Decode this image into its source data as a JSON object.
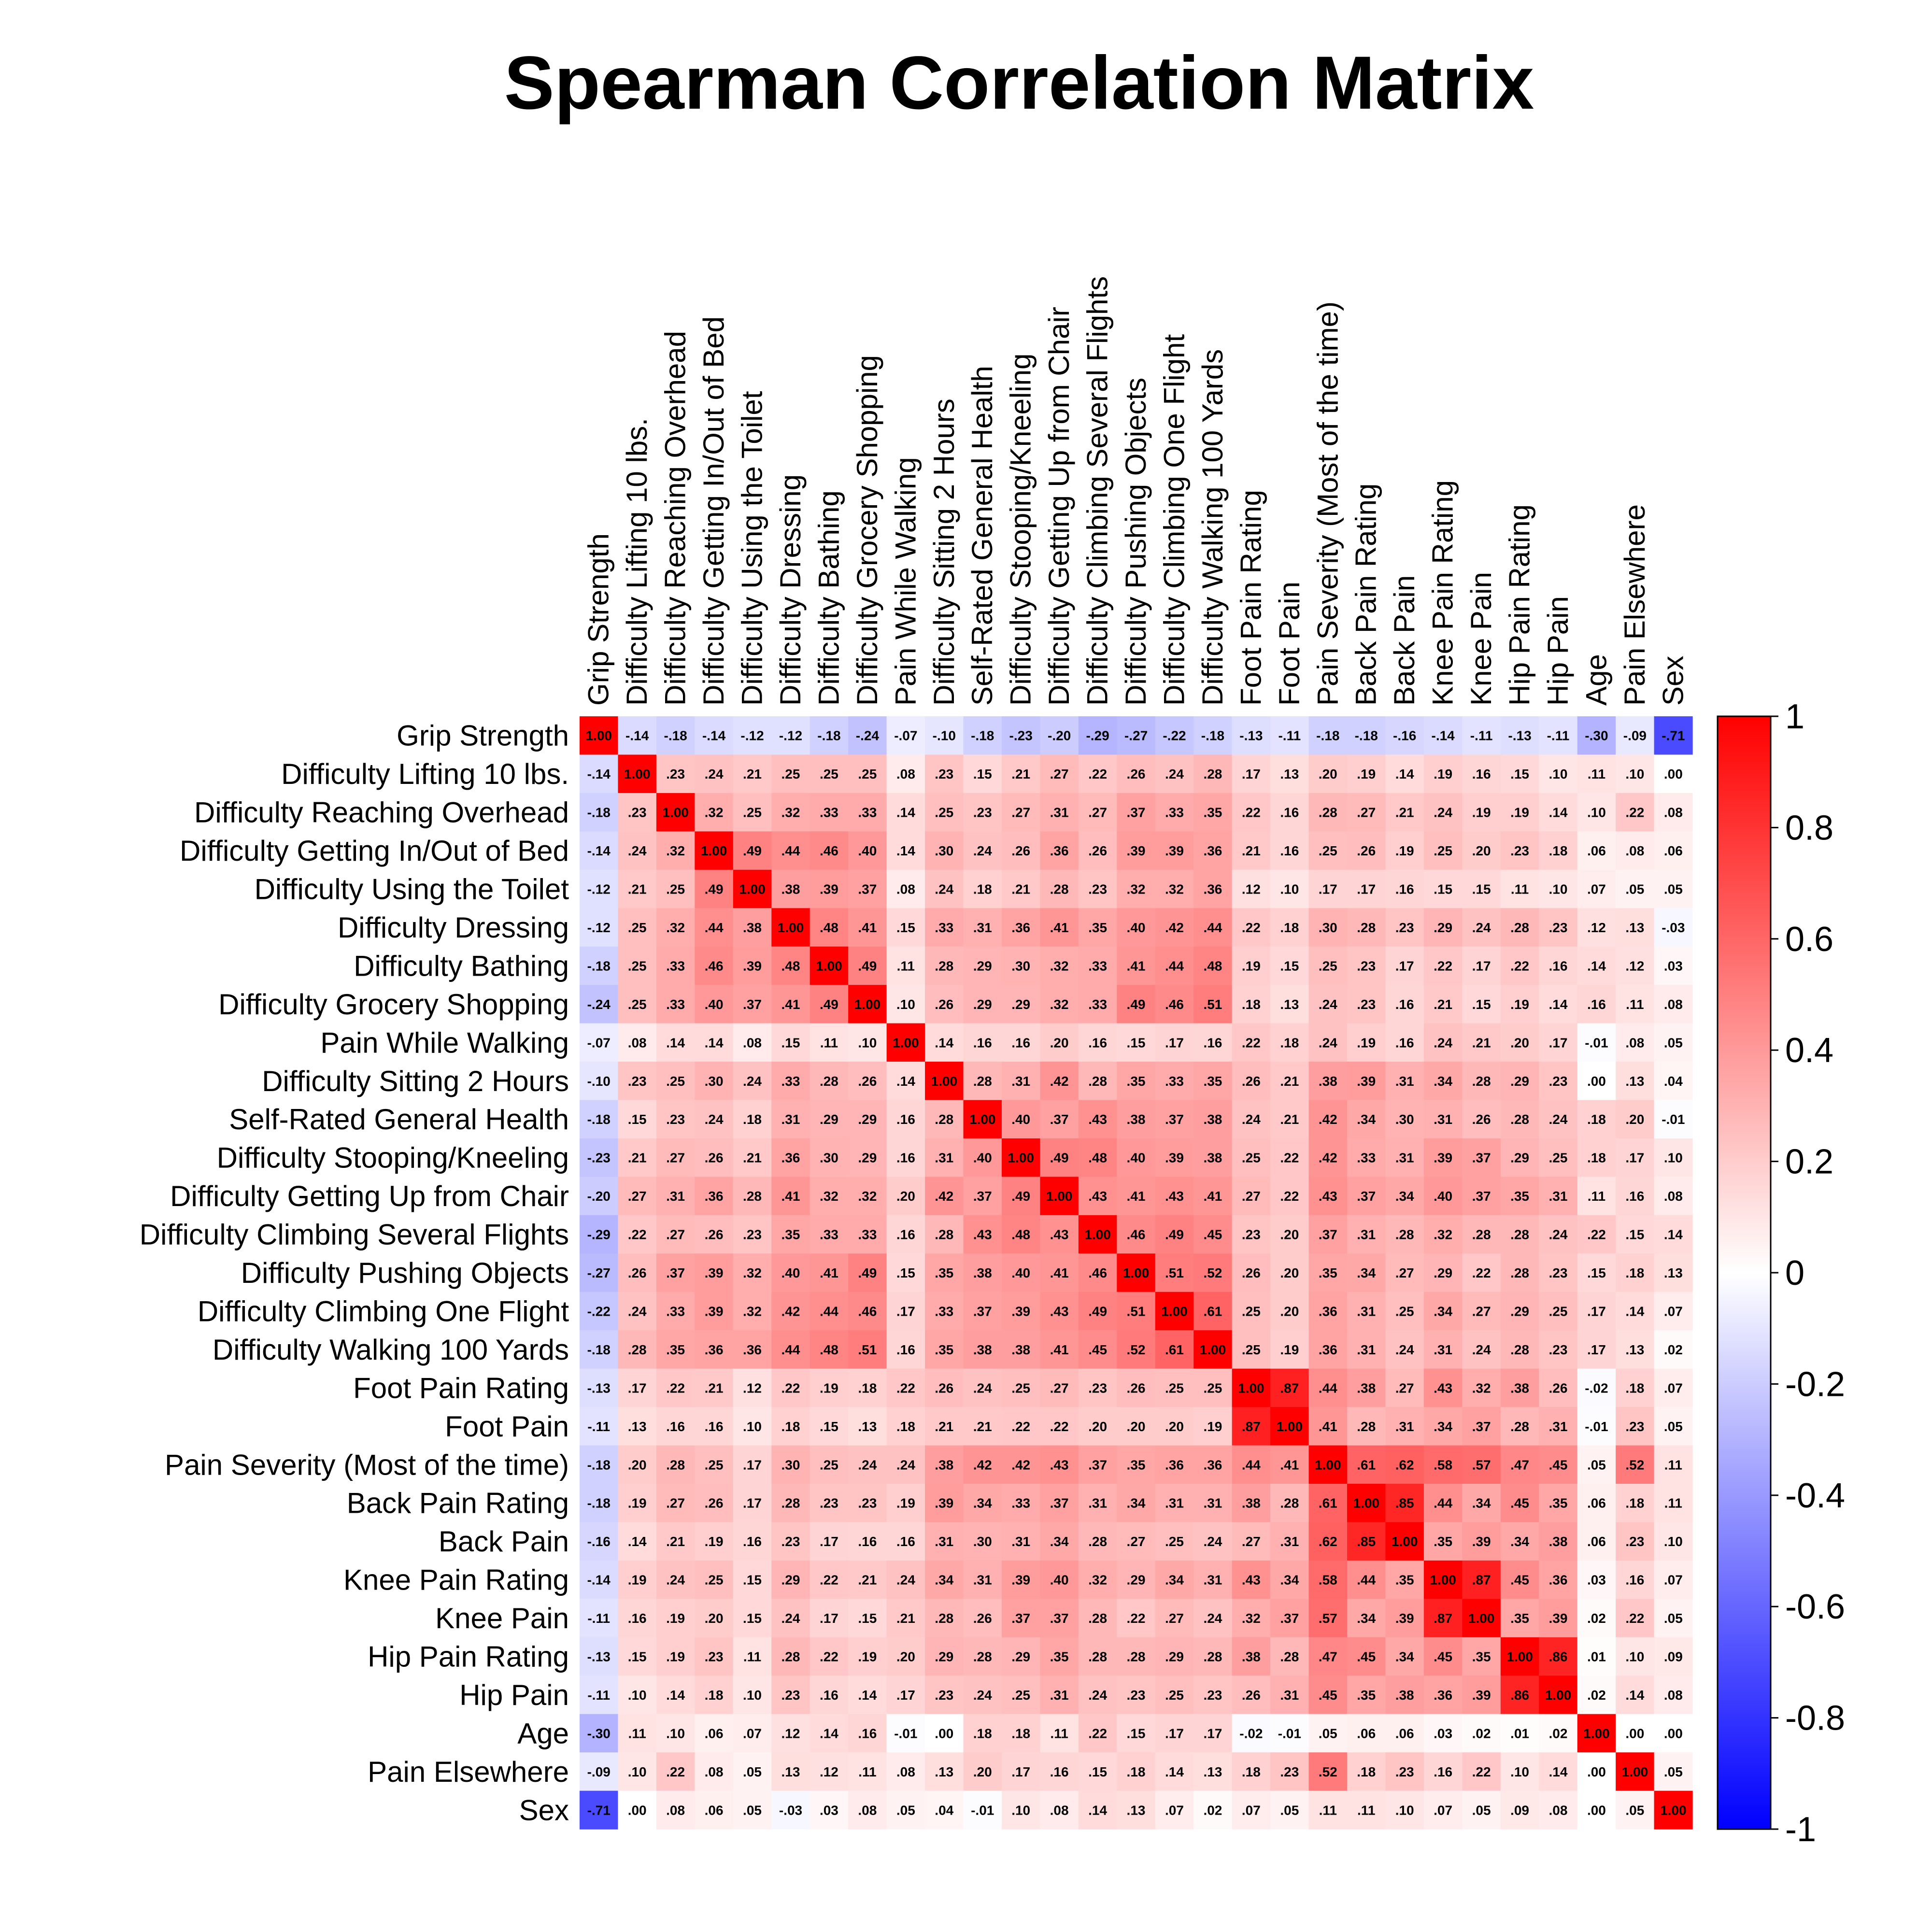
{
  "chart_data": {
    "type": "heatmap",
    "title": "Spearman Correlation Matrix",
    "variables": [
      "Grip Strength",
      "Difficulty Lifting 10 lbs.",
      "Difficulty Reaching Overhead",
      "Difficulty Getting In/Out of Bed",
      "Difficulty Using the Toilet",
      "Difficulty Dressing",
      "Difficulty Bathing",
      "Difficulty Grocery Shopping",
      "Pain While Walking",
      "Difficulty Sitting 2 Hours",
      "Self-Rated General Health",
      "Difficulty Stooping/Kneeling",
      "Difficulty Getting Up from Chair",
      "Difficulty Climbing Several Flights",
      "Difficulty Pushing Objects",
      "Difficulty Climbing One Flight",
      "Difficulty Walking 100 Yards",
      "Foot Pain Rating",
      "Foot Pain",
      "Pain Severity (Most of the time)",
      "Back Pain Rating",
      "Back Pain",
      "Knee Pain Rating",
      "Knee Pain",
      "Hip Pain Rating",
      "Hip Pain",
      "Age",
      "Pain Elsewhere",
      "Sex"
    ],
    "matrix": [
      [
        1.0,
        -0.14,
        -0.18,
        -0.14,
        -0.12,
        -0.12,
        -0.18,
        -0.24,
        -0.07,
        -0.1,
        -0.18,
        -0.23,
        -0.2,
        -0.29,
        -0.27,
        -0.22,
        -0.18,
        -0.13,
        -0.11,
        -0.18,
        -0.18,
        -0.16,
        -0.14,
        -0.11,
        -0.13,
        -0.11,
        -0.3,
        -0.09,
        -0.71
      ],
      [
        -0.14,
        1.0,
        0.23,
        0.24,
        0.21,
        0.25,
        0.25,
        0.25,
        0.08,
        0.23,
        0.15,
        0.21,
        0.27,
        0.22,
        0.26,
        0.24,
        0.28,
        0.17,
        0.13,
        0.2,
        0.19,
        0.14,
        0.19,
        0.16,
        0.15,
        0.1,
        0.11,
        0.1,
        0.0
      ],
      [
        -0.18,
        0.23,
        1.0,
        0.32,
        0.25,
        0.32,
        0.33,
        0.33,
        0.14,
        0.25,
        0.23,
        0.27,
        0.31,
        0.27,
        0.37,
        0.33,
        0.35,
        0.22,
        0.16,
        0.28,
        0.27,
        0.21,
        0.24,
        0.19,
        0.19,
        0.14,
        0.1,
        0.22,
        0.08
      ],
      [
        -0.14,
        0.24,
        0.32,
        1.0,
        0.49,
        0.44,
        0.46,
        0.4,
        0.14,
        0.3,
        0.24,
        0.26,
        0.36,
        0.26,
        0.39,
        0.39,
        0.36,
        0.21,
        0.16,
        0.25,
        0.26,
        0.19,
        0.25,
        0.2,
        0.23,
        0.18,
        0.06,
        0.08,
        0.06
      ],
      [
        -0.12,
        0.21,
        0.25,
        0.49,
        1.0,
        0.38,
        0.39,
        0.37,
        0.08,
        0.24,
        0.18,
        0.21,
        0.28,
        0.23,
        0.32,
        0.32,
        0.36,
        0.12,
        0.1,
        0.17,
        0.17,
        0.16,
        0.15,
        0.15,
        0.11,
        0.1,
        0.07,
        0.05,
        0.05
      ],
      [
        -0.12,
        0.25,
        0.32,
        0.44,
        0.38,
        1.0,
        0.48,
        0.41,
        0.15,
        0.33,
        0.31,
        0.36,
        0.41,
        0.35,
        0.4,
        0.42,
        0.44,
        0.22,
        0.18,
        0.3,
        0.28,
        0.23,
        0.29,
        0.24,
        0.28,
        0.23,
        0.12,
        0.13,
        -0.03
      ],
      [
        -0.18,
        0.25,
        0.33,
        0.46,
        0.39,
        0.48,
        1.0,
        0.49,
        0.11,
        0.28,
        0.29,
        0.3,
        0.32,
        0.33,
        0.41,
        0.44,
        0.48,
        0.19,
        0.15,
        0.25,
        0.23,
        0.17,
        0.22,
        0.17,
        0.22,
        0.16,
        0.14,
        0.12,
        0.03
      ],
      [
        -0.24,
        0.25,
        0.33,
        0.4,
        0.37,
        0.41,
        0.49,
        1.0,
        0.1,
        0.26,
        0.29,
        0.29,
        0.32,
        0.33,
        0.49,
        0.46,
        0.51,
        0.18,
        0.13,
        0.24,
        0.23,
        0.16,
        0.21,
        0.15,
        0.19,
        0.14,
        0.16,
        0.11,
        0.08
      ],
      [
        -0.07,
        0.08,
        0.14,
        0.14,
        0.08,
        0.15,
        0.11,
        0.1,
        1.0,
        0.14,
        0.16,
        0.16,
        0.2,
        0.16,
        0.15,
        0.17,
        0.16,
        0.22,
        0.18,
        0.24,
        0.19,
        0.16,
        0.24,
        0.21,
        0.2,
        0.17,
        -0.01,
        0.08,
        0.05
      ],
      [
        -0.1,
        0.23,
        0.25,
        0.3,
        0.24,
        0.33,
        0.28,
        0.26,
        0.14,
        1.0,
        0.28,
        0.31,
        0.42,
        0.28,
        0.35,
        0.33,
        0.35,
        0.26,
        0.21,
        0.38,
        0.39,
        0.31,
        0.34,
        0.28,
        0.29,
        0.23,
        0.0,
        0.13,
        0.04
      ],
      [
        -0.18,
        0.15,
        0.23,
        0.24,
        0.18,
        0.31,
        0.29,
        0.29,
        0.16,
        0.28,
        1.0,
        0.4,
        0.37,
        0.43,
        0.38,
        0.37,
        0.38,
        0.24,
        0.21,
        0.42,
        0.34,
        0.3,
        0.31,
        0.26,
        0.28,
        0.24,
        0.18,
        0.2,
        -0.01
      ],
      [
        -0.23,
        0.21,
        0.27,
        0.26,
        0.21,
        0.36,
        0.3,
        0.29,
        0.16,
        0.31,
        0.4,
        1.0,
        0.49,
        0.48,
        0.4,
        0.39,
        0.38,
        0.25,
        0.22,
        0.42,
        0.33,
        0.31,
        0.39,
        0.37,
        0.29,
        0.25,
        0.18,
        0.17,
        0.1
      ],
      [
        -0.2,
        0.27,
        0.31,
        0.36,
        0.28,
        0.41,
        0.32,
        0.32,
        0.2,
        0.42,
        0.37,
        0.49,
        1.0,
        0.43,
        0.41,
        0.43,
        0.41,
        0.27,
        0.22,
        0.43,
        0.37,
        0.34,
        0.4,
        0.37,
        0.35,
        0.31,
        0.11,
        0.16,
        0.08
      ],
      [
        -0.29,
        0.22,
        0.27,
        0.26,
        0.23,
        0.35,
        0.33,
        0.33,
        0.16,
        0.28,
        0.43,
        0.48,
        0.43,
        1.0,
        0.46,
        0.49,
        0.45,
        0.23,
        0.2,
        0.37,
        0.31,
        0.28,
        0.32,
        0.28,
        0.28,
        0.24,
        0.22,
        0.15,
        0.14
      ],
      [
        -0.27,
        0.26,
        0.37,
        0.39,
        0.32,
        0.4,
        0.41,
        0.49,
        0.15,
        0.35,
        0.38,
        0.4,
        0.41,
        0.46,
        1.0,
        0.51,
        0.52,
        0.26,
        0.2,
        0.35,
        0.34,
        0.27,
        0.29,
        0.22,
        0.28,
        0.23,
        0.15,
        0.18,
        0.13
      ],
      [
        -0.22,
        0.24,
        0.33,
        0.39,
        0.32,
        0.42,
        0.44,
        0.46,
        0.17,
        0.33,
        0.37,
        0.39,
        0.43,
        0.49,
        0.51,
        1.0,
        0.61,
        0.25,
        0.2,
        0.36,
        0.31,
        0.25,
        0.34,
        0.27,
        0.29,
        0.25,
        0.17,
        0.14,
        0.07
      ],
      [
        -0.18,
        0.28,
        0.35,
        0.36,
        0.36,
        0.44,
        0.48,
        0.51,
        0.16,
        0.35,
        0.38,
        0.38,
        0.41,
        0.45,
        0.52,
        0.61,
        1.0,
        0.25,
        0.19,
        0.36,
        0.31,
        0.24,
        0.31,
        0.24,
        0.28,
        0.23,
        0.17,
        0.13,
        0.02
      ],
      [
        -0.13,
        0.17,
        0.22,
        0.21,
        0.12,
        0.22,
        0.19,
        0.18,
        0.22,
        0.26,
        0.24,
        0.25,
        0.27,
        0.23,
        0.26,
        0.25,
        0.25,
        1.0,
        0.87,
        0.44,
        0.38,
        0.27,
        0.43,
        0.32,
        0.38,
        0.26,
        -0.02,
        0.18,
        0.07
      ],
      [
        -0.11,
        0.13,
        0.16,
        0.16,
        0.1,
        0.18,
        0.15,
        0.13,
        0.18,
        0.21,
        0.21,
        0.22,
        0.22,
        0.2,
        0.2,
        0.2,
        0.19,
        0.87,
        1.0,
        0.41,
        0.28,
        0.31,
        0.34,
        0.37,
        0.28,
        0.31,
        -0.01,
        0.23,
        0.05
      ],
      [
        -0.18,
        0.2,
        0.28,
        0.25,
        0.17,
        0.3,
        0.25,
        0.24,
        0.24,
        0.38,
        0.42,
        0.42,
        0.43,
        0.37,
        0.35,
        0.36,
        0.36,
        0.44,
        0.41,
        1.0,
        0.61,
        0.62,
        0.58,
        0.57,
        0.47,
        0.45,
        0.05,
        0.52,
        0.11
      ],
      [
        -0.18,
        0.19,
        0.27,
        0.26,
        0.17,
        0.28,
        0.23,
        0.23,
        0.19,
        0.39,
        0.34,
        0.33,
        0.37,
        0.31,
        0.34,
        0.31,
        0.31,
        0.38,
        0.28,
        0.61,
        1.0,
        0.85,
        0.44,
        0.34,
        0.45,
        0.35,
        0.06,
        0.18,
        0.11
      ],
      [
        -0.16,
        0.14,
        0.21,
        0.19,
        0.16,
        0.23,
        0.17,
        0.16,
        0.16,
        0.31,
        0.3,
        0.31,
        0.34,
        0.28,
        0.27,
        0.25,
        0.24,
        0.27,
        0.31,
        0.62,
        0.85,
        1.0,
        0.35,
        0.39,
        0.34,
        0.38,
        0.06,
        0.23,
        0.1
      ],
      [
        -0.14,
        0.19,
        0.24,
        0.25,
        0.15,
        0.29,
        0.22,
        0.21,
        0.24,
        0.34,
        0.31,
        0.39,
        0.4,
        0.32,
        0.29,
        0.34,
        0.31,
        0.43,
        0.34,
        0.58,
        0.44,
        0.35,
        1.0,
        0.87,
        0.45,
        0.36,
        0.03,
        0.16,
        0.07
      ],
      [
        -0.11,
        0.16,
        0.19,
        0.2,
        0.15,
        0.24,
        0.17,
        0.15,
        0.21,
        0.28,
        0.26,
        0.37,
        0.37,
        0.28,
        0.22,
        0.27,
        0.24,
        0.32,
        0.37,
        0.57,
        0.34,
        0.39,
        0.87,
        1.0,
        0.35,
        0.39,
        0.02,
        0.22,
        0.05
      ],
      [
        -0.13,
        0.15,
        0.19,
        0.23,
        0.11,
        0.28,
        0.22,
        0.19,
        0.2,
        0.29,
        0.28,
        0.29,
        0.35,
        0.28,
        0.28,
        0.29,
        0.28,
        0.38,
        0.28,
        0.47,
        0.45,
        0.34,
        0.45,
        0.35,
        1.0,
        0.86,
        0.01,
        0.1,
        0.09
      ],
      [
        -0.11,
        0.1,
        0.14,
        0.18,
        0.1,
        0.23,
        0.16,
        0.14,
        0.17,
        0.23,
        0.24,
        0.25,
        0.31,
        0.24,
        0.23,
        0.25,
        0.23,
        0.26,
        0.31,
        0.45,
        0.35,
        0.38,
        0.36,
        0.39,
        0.86,
        1.0,
        0.02,
        0.14,
        0.08
      ],
      [
        -0.3,
        0.11,
        0.1,
        0.06,
        0.07,
        0.12,
        0.14,
        0.16,
        -0.01,
        0.0,
        0.18,
        0.18,
        0.11,
        0.22,
        0.15,
        0.17,
        0.17,
        -0.02,
        -0.01,
        0.05,
        0.06,
        0.06,
        0.03,
        0.02,
        0.01,
        0.02,
        1.0,
        0.0,
        0.0
      ],
      [
        -0.09,
        0.1,
        0.22,
        0.08,
        0.05,
        0.13,
        0.12,
        0.11,
        0.08,
        0.13,
        0.2,
        0.17,
        0.16,
        0.15,
        0.18,
        0.14,
        0.13,
        0.18,
        0.23,
        0.52,
        0.18,
        0.23,
        0.16,
        0.22,
        0.1,
        0.14,
        0.0,
        1.0,
        0.05
      ],
      [
        -0.71,
        0.0,
        0.08,
        0.06,
        0.05,
        -0.03,
        0.03,
        0.08,
        0.05,
        0.04,
        -0.01,
        0.1,
        0.08,
        0.14,
        0.13,
        0.07,
        0.02,
        0.07,
        0.05,
        0.11,
        0.11,
        0.1,
        0.07,
        0.05,
        0.09,
        0.08,
        0.0,
        0.05,
        1.0
      ]
    ],
    "color_range": [
      -1,
      1
    ],
    "colorbar_ticks": [
      1,
      0.8,
      0.6,
      0.4,
      0.2,
      0,
      -0.2,
      -0.4,
      -0.6,
      -0.8,
      -1
    ],
    "colorbar_tick_labels": [
      "1",
      "0.8",
      "0.6",
      "0.4",
      "0.2",
      "0",
      "-0.2",
      "-0.4",
      "-0.6",
      "-0.8",
      "-1"
    ],
    "colors": {
      "negative": "#0000ff",
      "zero": "#ffffff",
      "positive": "#ff0000"
    },
    "column_label_position": "top",
    "row_label_position": "left",
    "colorbar_position": "right",
    "value_labels": true
  }
}
